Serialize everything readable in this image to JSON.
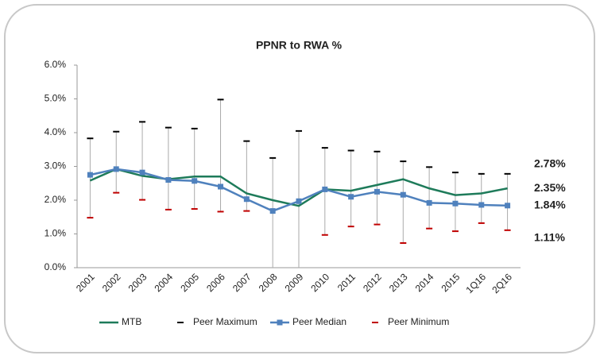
{
  "chart_data": {
    "type": "line",
    "title": "PPNR to RWA %",
    "categories": [
      "2001",
      "2002",
      "2003",
      "2004",
      "2005",
      "2006",
      "2007",
      "2008",
      "2009",
      "2010",
      "2011",
      "2012",
      "2013",
      "2014",
      "2015",
      "1Q16",
      "2Q16"
    ],
    "series": [
      {
        "name": "MTB",
        "color": "#1e7b5a",
        "line": true,
        "marker": "none",
        "values": [
          2.58,
          2.92,
          2.72,
          2.62,
          2.7,
          2.7,
          2.2,
          2.0,
          1.83,
          2.32,
          2.28,
          2.45,
          2.62,
          2.35,
          2.15,
          2.2,
          2.35
        ],
        "value_labels": [
          null,
          null,
          null,
          null,
          null,
          null,
          null,
          null,
          null,
          null,
          null,
          null,
          null,
          null,
          null,
          null,
          "2.35%"
        ]
      },
      {
        "name": "Peer Maximum",
        "color": "#000000",
        "line": false,
        "marker": "dash",
        "values": [
          3.83,
          4.03,
          4.32,
          4.15,
          4.12,
          4.98,
          3.75,
          3.25,
          4.05,
          3.55,
          3.47,
          3.44,
          3.15,
          2.98,
          2.82,
          2.78,
          2.78
        ],
        "value_labels": [
          null,
          null,
          null,
          null,
          null,
          null,
          null,
          null,
          null,
          null,
          null,
          null,
          null,
          null,
          null,
          null,
          "2.78%"
        ]
      },
      {
        "name": "Peer Median",
        "color": "#4f81bd",
        "line": true,
        "marker": "square",
        "values": [
          2.75,
          2.92,
          2.82,
          2.6,
          2.57,
          2.4,
          2.03,
          1.68,
          1.97,
          2.32,
          2.1,
          2.25,
          2.16,
          1.92,
          1.9,
          1.86,
          1.84
        ],
        "value_labels": [
          null,
          null,
          null,
          null,
          null,
          null,
          null,
          null,
          null,
          null,
          null,
          null,
          null,
          null,
          null,
          null,
          "1.84%"
        ]
      },
      {
        "name": "Peer Minimum",
        "color": "#c00000",
        "line": false,
        "marker": "dash",
        "values": [
          1.48,
          2.22,
          2.01,
          1.72,
          1.74,
          1.66,
          1.68,
          null,
          null,
          0.97,
          1.22,
          1.28,
          0.73,
          1.16,
          1.08,
          1.32,
          1.11
        ],
        "value_labels": [
          null,
          null,
          null,
          null,
          null,
          null,
          null,
          null,
          null,
          null,
          null,
          null,
          null,
          null,
          null,
          null,
          "1.11%"
        ]
      }
    ],
    "ylim": [
      0,
      6
    ],
    "yticks": [
      {
        "value": 0,
        "label": "0.0%"
      },
      {
        "value": 1,
        "label": "1.0%"
      },
      {
        "value": 2,
        "label": "2.0%"
      },
      {
        "value": 3,
        "label": "3.0%"
      },
      {
        "value": 4,
        "label": "4.0%"
      },
      {
        "value": 5,
        "label": "5.0%"
      },
      {
        "value": 6,
        "label": "6.0%"
      }
    ],
    "grid": false,
    "legend": "bottom"
  }
}
